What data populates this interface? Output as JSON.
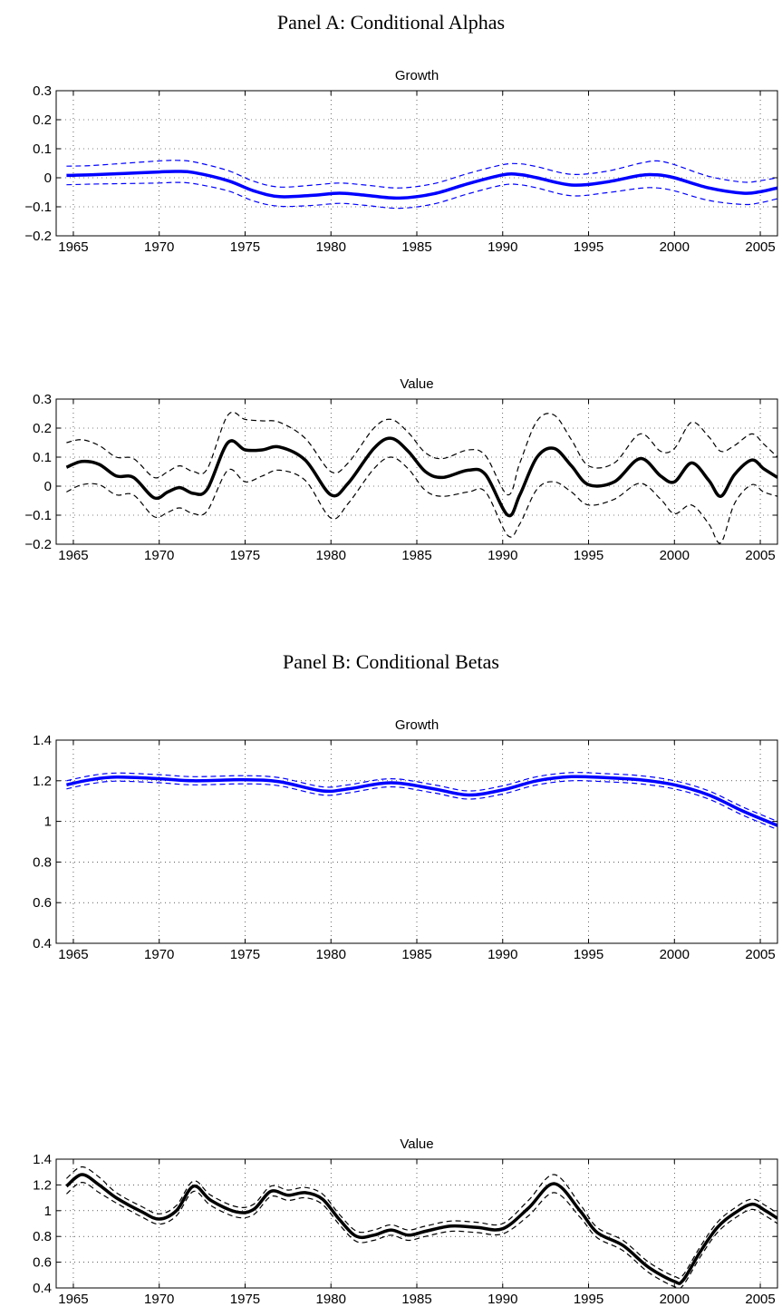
{
  "panels": [
    {
      "title": "Panel A: Conditional Alphas"
    },
    {
      "title": "Panel B: Conditional Betas"
    }
  ],
  "colors": {
    "growth": "#0000ff",
    "value": "#000000",
    "grid": "#000000"
  },
  "chart_data": [
    {
      "type": "line",
      "panel": "Panel A: Conditional Alphas",
      "title": "Growth",
      "xlim": [
        1964,
        2006
      ],
      "ylim": [
        -0.2,
        0.3
      ],
      "xticks": [
        1965,
        1970,
        1975,
        1980,
        1985,
        1990,
        1995,
        2000,
        2005
      ],
      "xtick_labels": [
        "1965",
        "1970",
        "1975",
        "1980",
        "1985",
        "1990",
        "1995",
        "2000",
        "2005"
      ],
      "yticks": [
        -0.2,
        -0.1,
        0,
        0.1,
        0.2,
        0.3
      ],
      "ytick_labels": [
        "−0.2",
        "−0.1",
        "0",
        "0.1",
        "0.2",
        "0.3"
      ],
      "grid": true,
      "color": "#0000ff",
      "x": [
        1964.6,
        1966,
        1968,
        1970,
        1971,
        1972,
        1974,
        1975.5,
        1977,
        1979,
        1980.5,
        1982,
        1984,
        1986,
        1988,
        1990,
        1991,
        1992,
        1994,
        1996,
        1998,
        1999,
        2000,
        2002,
        2004,
        2005,
        2006
      ],
      "series": [
        {
          "values": [
            0.008,
            0.01,
            0.015,
            0.02,
            0.022,
            0.018,
            -0.01,
            -0.045,
            -0.065,
            -0.06,
            -0.053,
            -0.06,
            -0.07,
            -0.055,
            -0.02,
            0.01,
            0.011,
            0.0,
            -0.025,
            -0.015,
            0.008,
            0.01,
            0.0,
            -0.035,
            -0.053,
            -0.048,
            -0.035
          ]
        },
        {
          "values": [
            0.04,
            0.042,
            0.05,
            0.058,
            0.06,
            0.055,
            0.025,
            -0.012,
            -0.032,
            -0.025,
            -0.018,
            -0.025,
            -0.035,
            -0.02,
            0.015,
            0.045,
            0.048,
            0.038,
            0.012,
            0.022,
            0.05,
            0.058,
            0.045,
            0.005,
            -0.015,
            -0.01,
            0.0
          ]
        },
        {
          "values": [
            -0.024,
            -0.022,
            -0.02,
            -0.018,
            -0.016,
            -0.02,
            -0.045,
            -0.08,
            -0.098,
            -0.095,
            -0.088,
            -0.095,
            -0.105,
            -0.09,
            -0.055,
            -0.025,
            -0.024,
            -0.035,
            -0.062,
            -0.052,
            -0.036,
            -0.035,
            -0.045,
            -0.078,
            -0.092,
            -0.086,
            -0.072
          ]
        }
      ]
    },
    {
      "type": "line",
      "panel": "Panel A: Conditional Alphas",
      "title": "Value",
      "xlim": [
        1964,
        2006
      ],
      "ylim": [
        -0.2,
        0.3
      ],
      "xticks": [
        1965,
        1970,
        1975,
        1980,
        1985,
        1990,
        1995,
        2000,
        2005
      ],
      "xtick_labels": [
        "1965",
        "1970",
        "1975",
        "1980",
        "1985",
        "1990",
        "1995",
        "2000",
        "2005"
      ],
      "yticks": [
        -0.2,
        -0.1,
        0,
        0.1,
        0.2,
        0.3
      ],
      "ytick_labels": [
        "−0.2",
        "−0.1",
        "0",
        "0.1",
        "0.2",
        "0.3"
      ],
      "grid": true,
      "color": "#000000",
      "x": [
        1964.6,
        1965.5,
        1966.5,
        1967.5,
        1968.5,
        1969.7,
        1970.5,
        1971.2,
        1972,
        1972.8,
        1974,
        1975,
        1976,
        1977,
        1978.5,
        1980,
        1981,
        1982.5,
        1983.5,
        1984.5,
        1985.5,
        1986.5,
        1988,
        1989,
        1990.3,
        1991,
        1992,
        1993,
        1994,
        1995,
        1996.5,
        1998,
        1999.2,
        2000,
        2001,
        2002,
        2002.7,
        2003.5,
        2004.5,
        2005.2,
        2006
      ],
      "series": [
        {
          "values": [
            0.065,
            0.085,
            0.075,
            0.035,
            0.03,
            -0.04,
            -0.02,
            -0.005,
            -0.025,
            -0.01,
            0.15,
            0.125,
            0.125,
            0.135,
            0.09,
            -0.03,
            0.01,
            0.13,
            0.165,
            0.12,
            0.05,
            0.03,
            0.055,
            0.04,
            -0.1,
            -0.03,
            0.1,
            0.13,
            0.07,
            0.005,
            0.015,
            0.095,
            0.035,
            0.015,
            0.08,
            0.02,
            -0.035,
            0.04,
            0.09,
            0.06,
            0.03
          ]
        },
        {
          "values": [
            0.15,
            0.16,
            0.14,
            0.1,
            0.095,
            0.03,
            0.05,
            0.07,
            0.05,
            0.06,
            0.245,
            0.23,
            0.225,
            0.22,
            0.165,
            0.05,
            0.08,
            0.2,
            0.23,
            0.185,
            0.115,
            0.095,
            0.125,
            0.105,
            -0.03,
            0.08,
            0.225,
            0.245,
            0.16,
            0.07,
            0.08,
            0.18,
            0.12,
            0.13,
            0.22,
            0.17,
            0.12,
            0.14,
            0.18,
            0.145,
            0.1
          ]
        },
        {
          "values": [
            -0.02,
            0.005,
            0.005,
            -0.03,
            -0.03,
            -0.105,
            -0.09,
            -0.075,
            -0.095,
            -0.085,
            0.055,
            0.015,
            0.035,
            0.055,
            0.02,
            -0.11,
            -0.06,
            0.06,
            0.1,
            0.06,
            -0.015,
            -0.035,
            -0.02,
            -0.02,
            -0.17,
            -0.13,
            -0.01,
            0.015,
            -0.02,
            -0.065,
            -0.045,
            0.01,
            -0.045,
            -0.095,
            -0.065,
            -0.13,
            -0.195,
            -0.06,
            0.005,
            -0.02,
            -0.035
          ]
        }
      ]
    },
    {
      "type": "line",
      "panel": "Panel B: Conditional Betas",
      "title": "Growth",
      "xlim": [
        1964,
        2006
      ],
      "ylim": [
        0.4,
        1.4
      ],
      "xticks": [
        1965,
        1970,
        1975,
        1980,
        1985,
        1990,
        1995,
        2000,
        2005
      ],
      "xtick_labels": [
        "1965",
        "1970",
        "1975",
        "1980",
        "1985",
        "1990",
        "1995",
        "2000",
        "2005"
      ],
      "yticks": [
        0.4,
        0.6,
        0.8,
        1,
        1.2,
        1.4
      ],
      "ytick_labels": [
        "0.4",
        "0.6",
        "0.8",
        "1",
        "1.2",
        "1.4"
      ],
      "grid": true,
      "color": "#0000ff",
      "x": [
        1964.6,
        1966,
        1967.5,
        1970,
        1972,
        1975,
        1977,
        1979.5,
        1981,
        1983.5,
        1986,
        1988,
        1990,
        1992,
        1994,
        1996,
        1998,
        2000,
        2002,
        2004,
        2006
      ],
      "series": [
        {
          "values": [
            1.18,
            1.205,
            1.218,
            1.21,
            1.2,
            1.205,
            1.195,
            1.15,
            1.16,
            1.19,
            1.16,
            1.13,
            1.155,
            1.2,
            1.22,
            1.215,
            1.205,
            1.18,
            1.13,
            1.05,
            0.98
          ]
        },
        {
          "values": [
            1.2,
            1.225,
            1.238,
            1.23,
            1.22,
            1.225,
            1.215,
            1.17,
            1.18,
            1.21,
            1.18,
            1.15,
            1.175,
            1.22,
            1.24,
            1.235,
            1.225,
            1.2,
            1.15,
            1.07,
            1.0
          ]
        },
        {
          "values": [
            1.16,
            1.185,
            1.198,
            1.19,
            1.18,
            1.185,
            1.175,
            1.13,
            1.14,
            1.17,
            1.14,
            1.11,
            1.135,
            1.18,
            1.2,
            1.195,
            1.185,
            1.16,
            1.11,
            1.03,
            0.96
          ]
        }
      ]
    },
    {
      "type": "line",
      "panel": "Panel B: Conditional Betas",
      "title": "Value",
      "xlim": [
        1964,
        2006
      ],
      "ylim": [
        0.4,
        1.4
      ],
      "xticks": [
        1965,
        1970,
        1975,
        1980,
        1985,
        1990,
        1995,
        2000,
        2005
      ],
      "xtick_labels": [
        "1965",
        "1970",
        "1975",
        "1980",
        "1985",
        "1990",
        "1995",
        "2000",
        "2005"
      ],
      "yticks": [
        0.4,
        0.6,
        0.8,
        1,
        1.2,
        1.4
      ],
      "ytick_labels": [
        "0.4",
        "0.6",
        "0.8",
        "1",
        "1.2",
        "1.4"
      ],
      "grid": true,
      "color": "#000000",
      "x": [
        1964.6,
        1965.5,
        1966.5,
        1967.5,
        1969,
        1970,
        1971,
        1972,
        1973,
        1974.5,
        1975.5,
        1976.5,
        1977.5,
        1978.5,
        1979.5,
        1980.5,
        1981.5,
        1982.5,
        1983.5,
        1984.5,
        1985.5,
        1987,
        1988.5,
        1990,
        1991.5,
        1993,
        1994.5,
        1995.5,
        1997,
        1998.5,
        2000,
        2000.5,
        2001.5,
        2002.5,
        2003.5,
        2004.5,
        2005.3,
        2006
      ],
      "series": [
        {
          "values": [
            1.19,
            1.28,
            1.2,
            1.1,
            0.99,
            0.935,
            1.0,
            1.19,
            1.08,
            0.99,
            1.01,
            1.15,
            1.12,
            1.14,
            1.09,
            0.93,
            0.8,
            0.81,
            0.85,
            0.81,
            0.84,
            0.88,
            0.87,
            0.86,
            1.02,
            1.21,
            1.0,
            0.83,
            0.73,
            0.56,
            0.45,
            0.46,
            0.68,
            0.87,
            0.98,
            1.05,
            1.0,
            0.94
          ]
        },
        {
          "values": [
            1.25,
            1.34,
            1.26,
            1.14,
            1.03,
            0.975,
            1.04,
            1.23,
            1.12,
            1.03,
            1.05,
            1.19,
            1.16,
            1.18,
            1.13,
            0.97,
            0.84,
            0.85,
            0.89,
            0.85,
            0.88,
            0.92,
            0.91,
            0.9,
            1.08,
            1.28,
            1.05,
            0.87,
            0.77,
            0.6,
            0.49,
            0.5,
            0.72,
            0.91,
            1.02,
            1.09,
            1.04,
            0.98
          ]
        },
        {
          "values": [
            1.13,
            1.22,
            1.14,
            1.06,
            0.95,
            0.895,
            0.96,
            1.15,
            1.04,
            0.95,
            0.97,
            1.11,
            1.08,
            1.1,
            1.05,
            0.89,
            0.76,
            0.77,
            0.81,
            0.77,
            0.8,
            0.84,
            0.83,
            0.82,
            0.96,
            1.14,
            0.95,
            0.79,
            0.69,
            0.52,
            0.41,
            0.42,
            0.64,
            0.83,
            0.94,
            1.01,
            0.96,
            0.9
          ]
        }
      ]
    }
  ]
}
